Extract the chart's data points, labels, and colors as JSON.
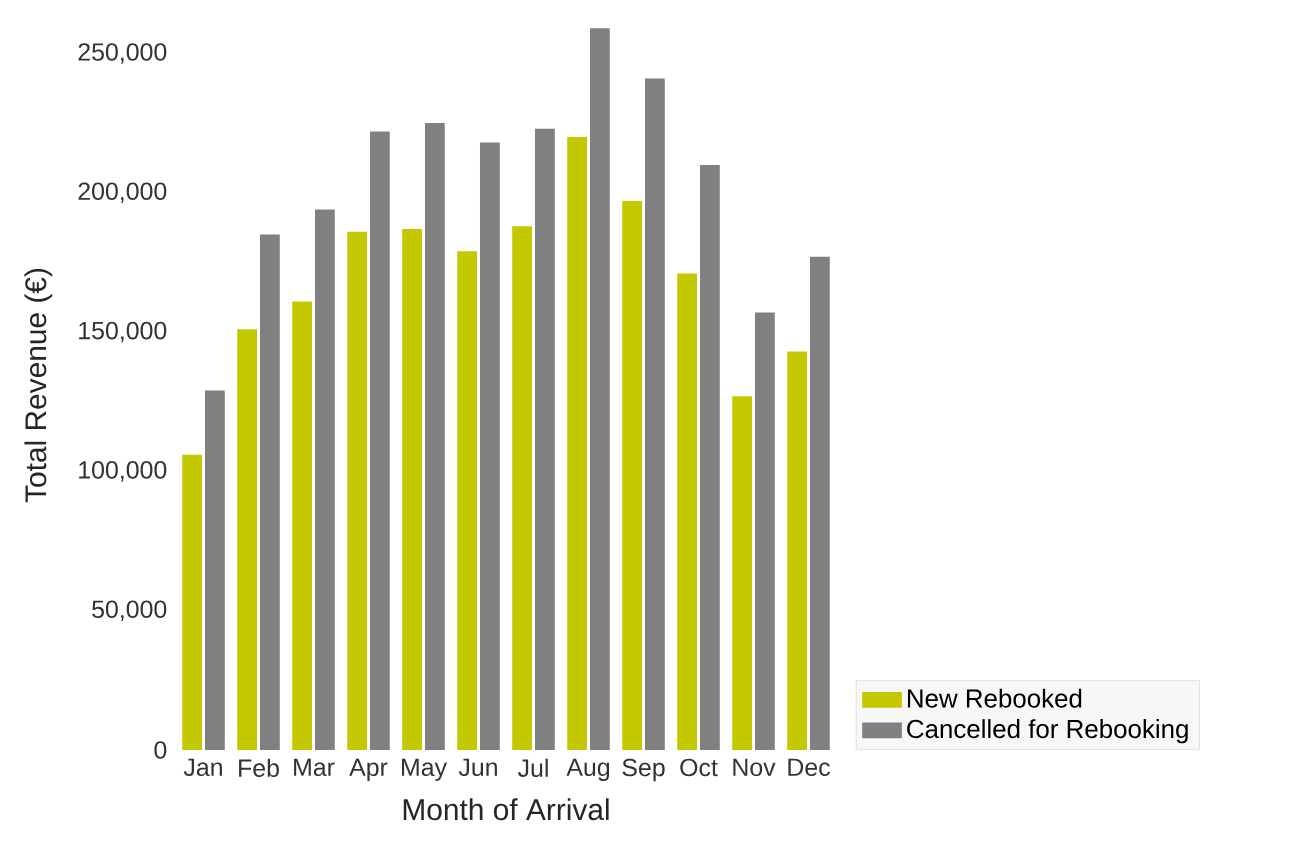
{
  "chart_data": {
    "type": "bar",
    "xlabel": "Month of Arrival",
    "ylabel": "Total Revenue (€)",
    "categories": [
      "Jan",
      "Feb",
      "Mar",
      "Apr",
      "May",
      "Jun",
      "Jul",
      "Aug",
      "Sep",
      "Oct",
      "Nov",
      "Dec"
    ],
    "series": [
      {
        "name": "New Rebooked",
        "color": "#c3c800",
        "values": [
          106000,
          151000,
          161000,
          186000,
          187000,
          179000,
          188000,
          220000,
          197000,
          171000,
          127000,
          143000
        ]
      },
      {
        "name": "Cancelled for Rebooking",
        "color": "#808080",
        "values": [
          129000,
          185000,
          194000,
          222000,
          225000,
          218000,
          223000,
          259000,
          241000,
          210000,
          157000,
          177000
        ]
      }
    ],
    "ylim": [
      0,
      262000
    ],
    "yticks": [
      0,
      {
        "value": 50000,
        "label": "50,000"
      },
      {
        "value": 100000,
        "label": "100,000"
      },
      {
        "value": 150000,
        "label": "150,000"
      },
      {
        "value": 200000,
        "label": "200,000"
      },
      {
        "value": 250000,
        "label": "250,000"
      }
    ],
    "grid": false,
    "legend": "bottom right"
  }
}
